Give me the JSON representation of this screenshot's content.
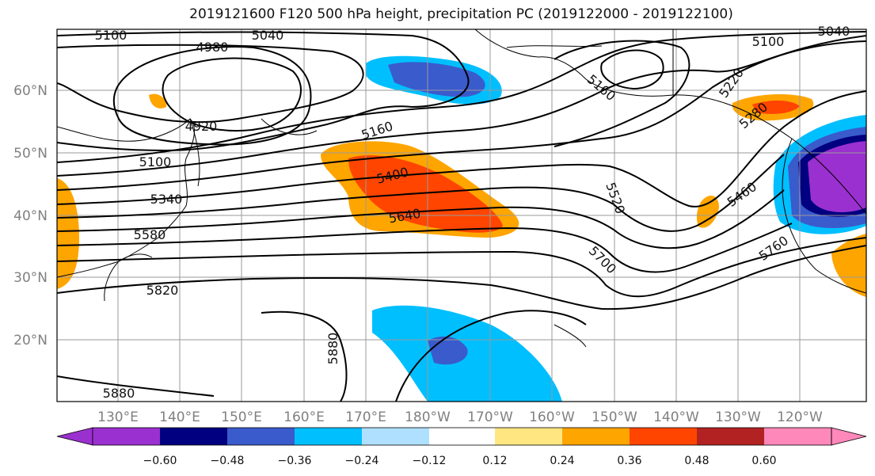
{
  "title": "2019121600 F120 500 hPa height, precipitation PC (2019122000 - 2019122100)",
  "latitude_labels": [
    "60°N",
    "50°N",
    "40°N",
    "30°N",
    "20°N"
  ],
  "longitude_labels": [
    "130°E",
    "140°E",
    "150°E",
    "160°E",
    "170°E",
    "180°W",
    "170°W",
    "160°W",
    "150°W",
    "140°W",
    "130°W",
    "120°W"
  ],
  "height_contour_labels": [
    "5100",
    "5040",
    "4980",
    "4920",
    "5100",
    "5340",
    "5580",
    "5820",
    "5880",
    "5880",
    "5160",
    "5400",
    "5640",
    "5160",
    "5220",
    "5280",
    "5100",
    "5040",
    "5520",
    "5700",
    "5460",
    "5760"
  ],
  "colorbar": {
    "tick_labels": [
      "−0.60",
      "−0.48",
      "−0.36",
      "−0.24",
      "−0.12",
      "0.12",
      "0.24",
      "0.36",
      "0.48",
      "0.60"
    ],
    "colors": [
      "#9b30d0",
      "#000080",
      "#3a5bcc",
      "#00bfff",
      "#b0e0ff",
      "#ffffff",
      "#ffe680",
      "#ffa500",
      "#ff4500",
      "#b22222",
      "#ff88bb"
    ]
  },
  "colors": {
    "neg_strong": "#9b30d0",
    "neg_navy": "#000080",
    "neg_blue": "#3a5bcc",
    "neg_sky": "#00bfff",
    "pos_orange": "#ffa500",
    "pos_red": "#ff4500",
    "pos_yellow": "#ffe680"
  }
}
